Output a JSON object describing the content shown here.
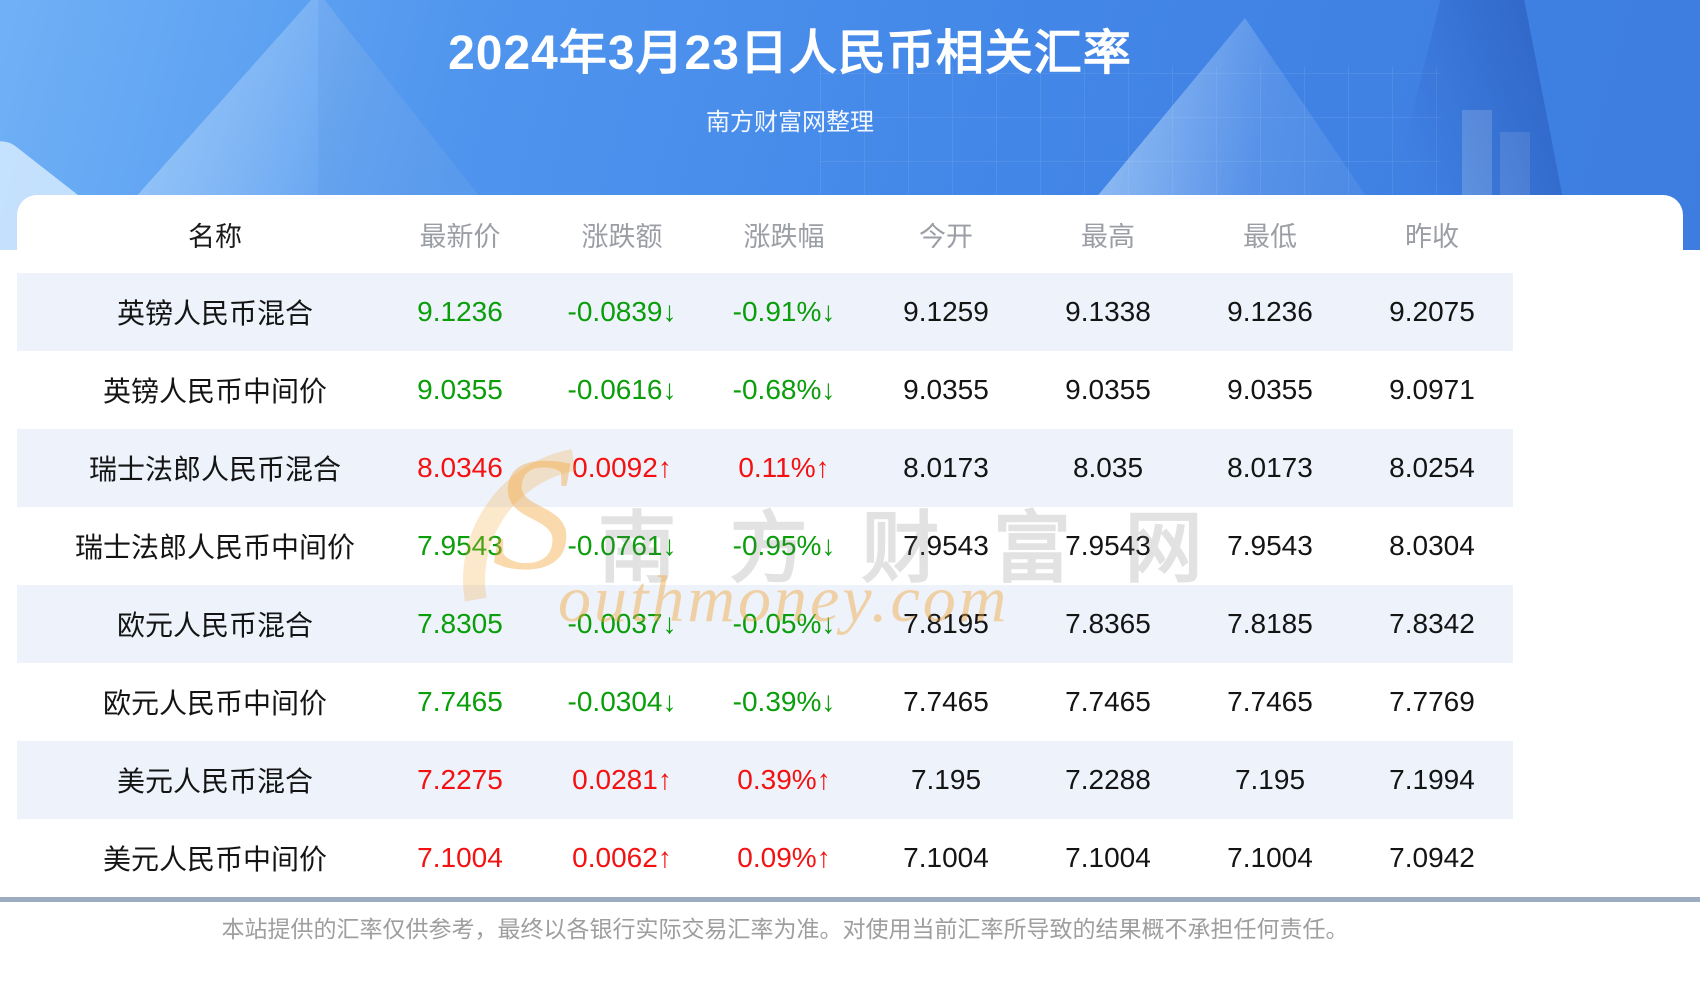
{
  "banner": {
    "title": "2024年3月23日人民币相关汇率",
    "subtitle": "南方财富网整理"
  },
  "watermark": {
    "cn": "南 方 财 富 网",
    "en_initial": "S",
    "en_rest": "outhmoney.com"
  },
  "footer": {
    "disclaimer": "本站提供的汇率仅供参考，最终以各银行实际交易汇率为准。对使用当前汇率所导致的结果概不承担任何责任。"
  },
  "colors": {
    "up_red": "#f31111",
    "down_green": "#0a9e0a",
    "banner_blue_light": "#70b1f6",
    "banner_blue_dark": "#3d7de0",
    "row_alt_bg": "#edf2fb",
    "header_text_gray": "#9b9fa5",
    "divider_gray_blue": "#9cadc1"
  },
  "chart_data": {
    "type": "table",
    "title": "2024年3月23日人民币相关汇率",
    "columns": [
      "名称",
      "最新价",
      "涨跌额",
      "涨跌幅",
      "今开",
      "最高",
      "最低",
      "昨收"
    ],
    "rows": [
      {
        "name": "英镑人民币混合",
        "latest": "9.1236",
        "change": "-0.0839↓",
        "pct": "-0.91%↓",
        "open": "9.1259",
        "high": "9.1338",
        "low": "9.1236",
        "prev": "9.2075",
        "trend": "down"
      },
      {
        "name": "英镑人民币中间价",
        "latest": "9.0355",
        "change": "-0.0616↓",
        "pct": "-0.68%↓",
        "open": "9.0355",
        "high": "9.0355",
        "low": "9.0355",
        "prev": "9.0971",
        "trend": "down"
      },
      {
        "name": "瑞士法郎人民币混合",
        "latest": "8.0346",
        "change": "0.0092↑",
        "pct": "0.11%↑",
        "open": "8.0173",
        "high": "8.035",
        "low": "8.0173",
        "prev": "8.0254",
        "trend": "up"
      },
      {
        "name": "瑞士法郎人民币中间价",
        "latest": "7.9543",
        "change": "-0.0761↓",
        "pct": "-0.95%↓",
        "open": "7.9543",
        "high": "7.9543",
        "low": "7.9543",
        "prev": "8.0304",
        "trend": "down"
      },
      {
        "name": "欧元人民币混合",
        "latest": "7.8305",
        "change": "-0.0037↓",
        "pct": "-0.05%↓",
        "open": "7.8195",
        "high": "7.8365",
        "low": "7.8185",
        "prev": "7.8342",
        "trend": "down"
      },
      {
        "name": "欧元人民币中间价",
        "latest": "7.7465",
        "change": "-0.0304↓",
        "pct": "-0.39%↓",
        "open": "7.7465",
        "high": "7.7465",
        "low": "7.7465",
        "prev": "7.7769",
        "trend": "down"
      },
      {
        "name": "美元人民币混合",
        "latest": "7.2275",
        "change": "0.0281↑",
        "pct": "0.39%↑",
        "open": "7.195",
        "high": "7.2288",
        "low": "7.195",
        "prev": "7.1994",
        "trend": "up"
      },
      {
        "name": "美元人民币中间价",
        "latest": "7.1004",
        "change": "0.0062↑",
        "pct": "0.09%↑",
        "open": "7.1004",
        "high": "7.1004",
        "low": "7.1004",
        "prev": "7.0942",
        "trend": "up"
      }
    ]
  }
}
